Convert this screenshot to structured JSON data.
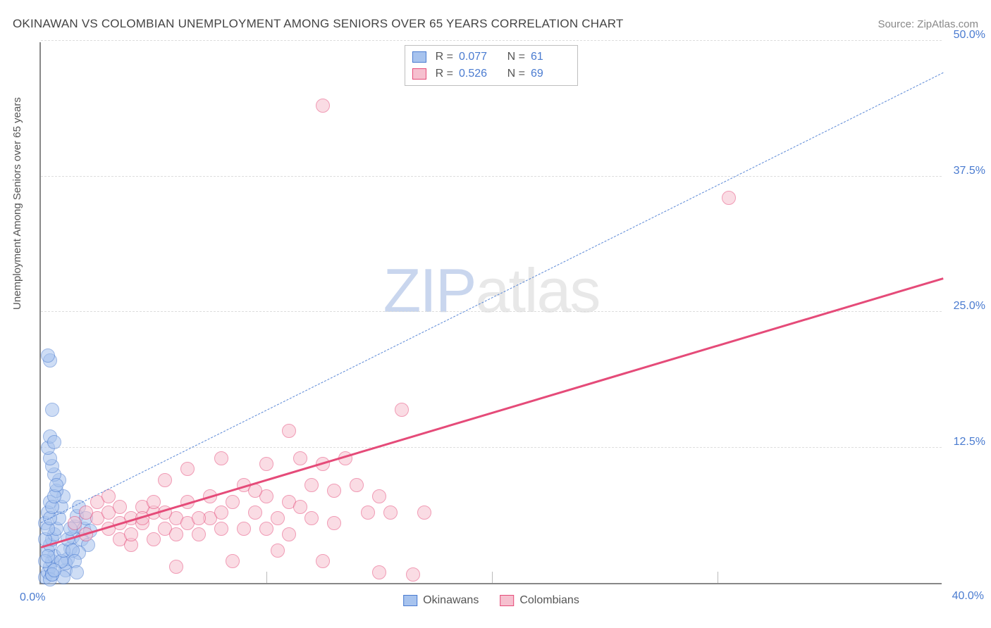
{
  "title": "OKINAWAN VS COLOMBIAN UNEMPLOYMENT AMONG SENIORS OVER 65 YEARS CORRELATION CHART",
  "source": "Source: ZipAtlas.com",
  "y_axis_label": "Unemployment Among Seniors over 65 years",
  "watermark": {
    "part1": "ZIP",
    "part2": "atlas"
  },
  "chart": {
    "type": "scatter",
    "background_color": "#ffffff",
    "grid_color": "#dddddd",
    "axis_color": "#888888",
    "tick_color": "#4a7bd0",
    "xlim": [
      0,
      40
    ],
    "ylim": [
      0,
      50
    ],
    "x_ticks": [
      0,
      10,
      20,
      30,
      40
    ],
    "y_ticks": [
      12.5,
      25.0,
      37.5,
      50.0
    ],
    "x_origin_label": "0.0%",
    "x_max_label": "40.0%",
    "y_tick_labels": [
      "12.5%",
      "25.0%",
      "37.5%",
      "50.0%"
    ],
    "marker_radius": 10,
    "marker_opacity": 0.55,
    "series": [
      {
        "name": "Okinawans",
        "color_fill": "#a7c3ee",
        "color_stroke": "#4a7bd0",
        "r": "0.077",
        "n": "61",
        "trend": {
          "style": "dashed",
          "color": "#5b88d6",
          "width": 1.5,
          "x1": 0,
          "y1": 5.5,
          "x2": 40,
          "y2": 47
        },
        "points": [
          [
            0.2,
            0.5
          ],
          [
            0.3,
            1.0
          ],
          [
            0.4,
            1.5
          ],
          [
            0.5,
            2.0
          ],
          [
            0.6,
            2.5
          ],
          [
            0.3,
            3.0
          ],
          [
            0.4,
            3.5
          ],
          [
            0.5,
            4.0
          ],
          [
            0.6,
            4.5
          ],
          [
            0.7,
            5.0
          ],
          [
            0.2,
            5.5
          ],
          [
            0.8,
            6.0
          ],
          [
            0.3,
            6.5
          ],
          [
            0.9,
            7.0
          ],
          [
            0.4,
            7.5
          ],
          [
            1.0,
            8.0
          ],
          [
            0.5,
            0.8
          ],
          [
            1.1,
            1.2
          ],
          [
            1.2,
            2.2
          ],
          [
            1.3,
            3.2
          ],
          [
            1.4,
            4.2
          ],
          [
            1.5,
            5.2
          ],
          [
            1.6,
            6.2
          ],
          [
            1.0,
            0.5
          ],
          [
            1.1,
            1.8
          ],
          [
            0.7,
            8.5
          ],
          [
            0.8,
            9.5
          ],
          [
            0.6,
            10.0
          ],
          [
            0.5,
            10.8
          ],
          [
            0.4,
            11.5
          ],
          [
            0.3,
            12.5
          ],
          [
            0.4,
            13.5
          ],
          [
            0.6,
            13.0
          ],
          [
            0.5,
            16.0
          ],
          [
            0.4,
            20.5
          ],
          [
            0.3,
            21.0
          ],
          [
            1.8,
            4.0
          ],
          [
            1.9,
            5.0
          ],
          [
            2.0,
            6.0
          ],
          [
            2.1,
            3.5
          ],
          [
            2.2,
            4.8
          ],
          [
            1.7,
            2.8
          ],
          [
            0.9,
            2.0
          ],
          [
            1.0,
            3.0
          ],
          [
            1.2,
            4.0
          ],
          [
            1.3,
            5.0
          ],
          [
            1.4,
            3.0
          ],
          [
            1.5,
            2.0
          ],
          [
            1.6,
            1.0
          ],
          [
            1.7,
            7.0
          ],
          [
            0.2,
            4.0
          ],
          [
            0.3,
            5.0
          ],
          [
            0.4,
            6.0
          ],
          [
            0.5,
            7.0
          ],
          [
            0.6,
            8.0
          ],
          [
            0.7,
            9.0
          ],
          [
            0.2,
            2.0
          ],
          [
            0.3,
            2.5
          ],
          [
            0.4,
            0.3
          ],
          [
            0.5,
            0.8
          ],
          [
            0.6,
            1.2
          ]
        ]
      },
      {
        "name": "Colombians",
        "color_fill": "#f6c0cf",
        "color_stroke": "#e54b79",
        "r": "0.526",
        "n": "69",
        "trend": {
          "style": "solid",
          "color": "#e54b79",
          "width": 3,
          "x1": 0,
          "y1": 3.2,
          "x2": 40,
          "y2": 28
        },
        "points": [
          [
            1.5,
            5.5
          ],
          [
            2.0,
            4.5
          ],
          [
            2.5,
            6.0
          ],
          [
            3.0,
            5.0
          ],
          [
            3.5,
            4.0
          ],
          [
            3.0,
            6.5
          ],
          [
            3.5,
            7.0
          ],
          [
            4.0,
            6.0
          ],
          [
            4.5,
            5.5
          ],
          [
            5.0,
            6.5
          ],
          [
            4.0,
            3.5
          ],
          [
            4.5,
            7.0
          ],
          [
            5.0,
            4.0
          ],
          [
            5.5,
            5.0
          ],
          [
            5.5,
            9.5
          ],
          [
            6.0,
            6.0
          ],
          [
            6.5,
            5.5
          ],
          [
            6.0,
            1.5
          ],
          [
            6.5,
            10.5
          ],
          [
            7.0,
            4.5
          ],
          [
            7.5,
            6.0
          ],
          [
            8.0,
            11.5
          ],
          [
            8.0,
            5.0
          ],
          [
            8.5,
            7.5
          ],
          [
            8.5,
            2.0
          ],
          [
            9.0,
            9.0
          ],
          [
            9.5,
            6.5
          ],
          [
            10.0,
            8.0
          ],
          [
            10.0,
            11.0
          ],
          [
            10.5,
            6.0
          ],
          [
            10.5,
            3.0
          ],
          [
            11.0,
            14.0
          ],
          [
            11.0,
            7.5
          ],
          [
            11.5,
            11.5
          ],
          [
            12.0,
            9.0
          ],
          [
            12.0,
            6.0
          ],
          [
            12.5,
            11.0
          ],
          [
            12.5,
            2.0
          ],
          [
            13.0,
            8.5
          ],
          [
            13.0,
            5.5
          ],
          [
            13.5,
            11.5
          ],
          [
            14.0,
            9.0
          ],
          [
            14.5,
            6.5
          ],
          [
            15.0,
            8.0
          ],
          [
            15.0,
            1.0
          ],
          [
            15.5,
            6.5
          ],
          [
            16.0,
            16.0
          ],
          [
            16.5,
            0.8
          ],
          [
            17.0,
            6.5
          ],
          [
            12.5,
            44.0
          ],
          [
            30.5,
            35.5
          ],
          [
            2.0,
            6.5
          ],
          [
            2.5,
            7.5
          ],
          [
            3.0,
            8.0
          ],
          [
            3.5,
            5.5
          ],
          [
            4.0,
            4.5
          ],
          [
            4.5,
            6.0
          ],
          [
            5.0,
            7.5
          ],
          [
            5.5,
            6.5
          ],
          [
            6.0,
            4.5
          ],
          [
            6.5,
            7.5
          ],
          [
            7.0,
            6.0
          ],
          [
            7.5,
            8.0
          ],
          [
            8.0,
            6.5
          ],
          [
            9.0,
            5.0
          ],
          [
            9.5,
            8.5
          ],
          [
            10.0,
            5.0
          ],
          [
            11.0,
            4.5
          ],
          [
            11.5,
            7.0
          ]
        ]
      }
    ]
  },
  "legend_top_labels": {
    "r": "R =",
    "n": "N ="
  },
  "legend_bottom": [
    "Okinawans",
    "Colombians"
  ]
}
